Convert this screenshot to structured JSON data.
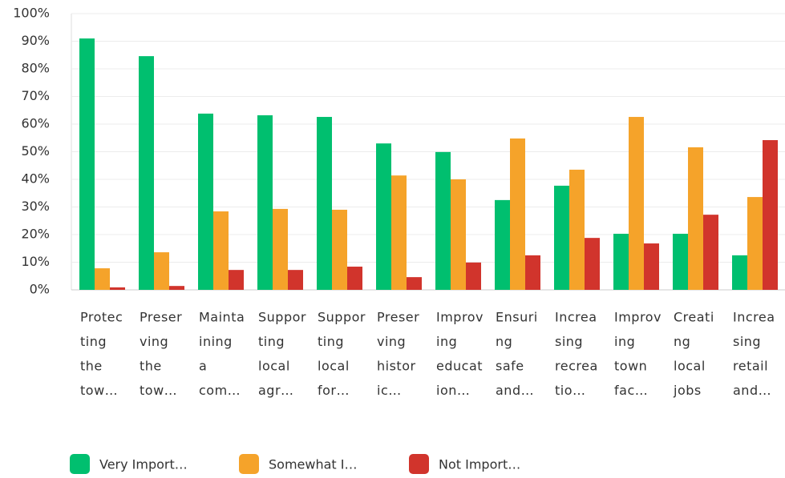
{
  "chart_data": {
    "type": "bar",
    "categories": [
      [
        "Protec",
        "ting",
        "the",
        "tow…"
      ],
      [
        "Preser",
        "ving",
        "the",
        "tow…"
      ],
      [
        "Mainta",
        "ining",
        "a",
        "com…"
      ],
      [
        "Suppor",
        "ting",
        "local",
        "agr…"
      ],
      [
        "Suppor",
        "ting",
        "local",
        "for…"
      ],
      [
        "Preser",
        "ving",
        "histor",
        "ic…"
      ],
      [
        "Improv",
        "ing",
        "educat",
        "ion…"
      ],
      [
        "Ensuri",
        "ng",
        "safe",
        "and…"
      ],
      [
        "Increa",
        "sing",
        "recrea",
        "tio…"
      ],
      [
        "Improv",
        "ing",
        "town",
        "fac…"
      ],
      [
        "Creati",
        "ng",
        "local",
        "jobs"
      ],
      [
        "Increa",
        "sing",
        "retail",
        "and…"
      ]
    ],
    "series": [
      {
        "name": "Very Import…",
        "color": "#00bf6f",
        "values": [
          91,
          84.6,
          63.8,
          63.2,
          62.6,
          53,
          49.9,
          32.5,
          37.7,
          20.3,
          20.3,
          12.5
        ]
      },
      {
        "name": "Somewhat I…",
        "color": "#f5a32a",
        "values": [
          7.8,
          13.6,
          28.4,
          29.3,
          29,
          41.4,
          40,
          54.8,
          43.5,
          62.6,
          51.6,
          33.6
        ]
      },
      {
        "name": "Not Import…",
        "color": "#d1342c",
        "values": [
          0.9,
          1.4,
          7.2,
          7.2,
          8.4,
          4.6,
          9.9,
          12.5,
          18.8,
          16.8,
          27.2,
          54.2
        ]
      }
    ],
    "ylim": [
      0,
      100
    ],
    "yticks": [
      {
        "value": 0,
        "label": "0%"
      },
      {
        "value": 10,
        "label": "10%"
      },
      {
        "value": 20,
        "label": "20%"
      },
      {
        "value": 30,
        "label": "30%"
      },
      {
        "value": 40,
        "label": "40%"
      },
      {
        "value": 50,
        "label": "50%"
      },
      {
        "value": 60,
        "label": "60%"
      },
      {
        "value": 70,
        "label": "70%"
      },
      {
        "value": 80,
        "label": "80%"
      },
      {
        "value": 90,
        "label": "90%"
      },
      {
        "value": 100,
        "label": "100%"
      }
    ],
    "grid": true
  }
}
